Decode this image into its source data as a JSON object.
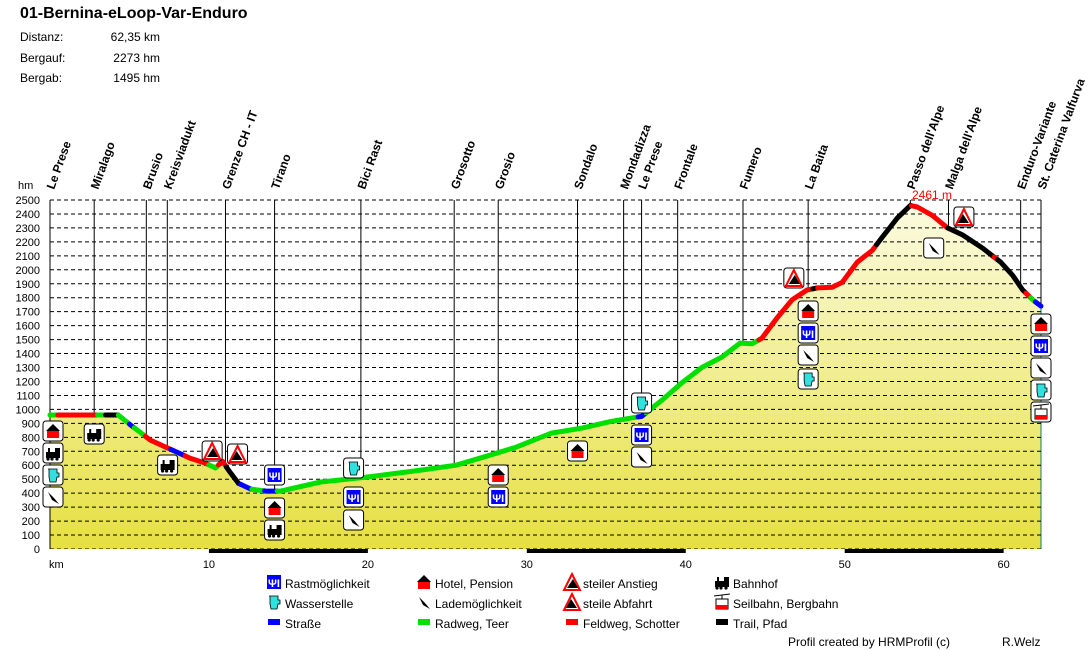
{
  "header": {
    "title": "01-Bernina-eLoop-Var-Enduro",
    "stats": [
      {
        "label": "Distanz:",
        "value": "62,35 km"
      },
      {
        "label": "Bergauf:",
        "value": "2273 hm"
      },
      {
        "label": "Bergab:",
        "value": "1495 hm"
      }
    ]
  },
  "chart_data": {
    "type": "area",
    "title": "01-Bernina-eLoop-Var-Enduro",
    "xlabel": "km",
    "ylabel": "hm",
    "xlim": [
      0,
      62.35
    ],
    "ylim": [
      0,
      2500
    ],
    "xticks": [
      10,
      20,
      30,
      40,
      50,
      60
    ],
    "yticks": [
      0,
      100,
      200,
      300,
      400,
      500,
      600,
      700,
      800,
      900,
      1000,
      1100,
      1200,
      1300,
      1400,
      1500,
      1600,
      1700,
      1800,
      1900,
      2000,
      2100,
      2200,
      2300,
      2400,
      2500
    ],
    "grid": true,
    "profile": [
      [
        0,
        960
      ],
      [
        2.52,
        960
      ],
      [
        4.29,
        960
      ],
      [
        5.05,
        890
      ],
      [
        6.31,
        780
      ],
      [
        7.57,
        715
      ],
      [
        8.83,
        650
      ],
      [
        9.78,
        615
      ],
      [
        10.41,
        580
      ],
      [
        10.85,
        630
      ],
      [
        11.23,
        565
      ],
      [
        11.86,
        470
      ],
      [
        12.62,
        430
      ],
      [
        13.56,
        415
      ],
      [
        14.51,
        415
      ],
      [
        17.03,
        480
      ],
      [
        19.56,
        510
      ],
      [
        23.34,
        565
      ],
      [
        25.55,
        600
      ],
      [
        27.76,
        675
      ],
      [
        29.34,
        730
      ],
      [
        31.55,
        830
      ],
      [
        33.44,
        865
      ],
      [
        35.33,
        915
      ],
      [
        37.22,
        950
      ],
      [
        38.49,
        1065
      ],
      [
        39.75,
        1190
      ],
      [
        41.01,
        1300
      ],
      [
        42.27,
        1375
      ],
      [
        43.41,
        1475
      ],
      [
        44.16,
        1470
      ],
      [
        44.79,
        1510
      ],
      [
        45.74,
        1655
      ],
      [
        46.69,
        1785
      ],
      [
        47.63,
        1855
      ],
      [
        48.26,
        1870
      ],
      [
        49.21,
        1875
      ],
      [
        49.84,
        1910
      ],
      [
        50.79,
        2055
      ],
      [
        51.74,
        2140
      ],
      [
        52.37,
        2235
      ],
      [
        53.31,
        2370
      ],
      [
        54.13,
        2461
      ],
      [
        54.57,
        2450
      ],
      [
        55.52,
        2390
      ],
      [
        56.47,
        2300
      ],
      [
        57.41,
        2250
      ],
      [
        58.68,
        2155
      ],
      [
        59.81,
        2055
      ],
      [
        60.57,
        1960
      ],
      [
        61.2,
        1855
      ],
      [
        61.83,
        1785
      ],
      [
        62.35,
        1740
      ]
    ],
    "surfaces": [
      {
        "from": 0,
        "to": 0.5,
        "type": "radweg"
      },
      {
        "from": 0.5,
        "to": 3,
        "type": "feldweg"
      },
      {
        "from": 3,
        "to": 3.5,
        "type": "radweg"
      },
      {
        "from": 3.5,
        "to": 4.3,
        "type": "trail"
      },
      {
        "from": 4.3,
        "to": 5,
        "type": "radweg"
      },
      {
        "from": 5,
        "to": 5.3,
        "type": "strasse"
      },
      {
        "from": 5.3,
        "to": 6,
        "type": "radweg"
      },
      {
        "from": 6,
        "to": 7.6,
        "type": "feldweg"
      },
      {
        "from": 7.6,
        "to": 8.5,
        "type": "strasse"
      },
      {
        "from": 8.5,
        "to": 10,
        "type": "feldweg"
      },
      {
        "from": 10,
        "to": 10.6,
        "type": "radweg"
      },
      {
        "from": 10.6,
        "to": 11.1,
        "type": "feldweg"
      },
      {
        "from": 11.1,
        "to": 12,
        "type": "trail"
      },
      {
        "from": 12,
        "to": 12.7,
        "type": "strasse"
      },
      {
        "from": 12.7,
        "to": 13.5,
        "type": "radweg"
      },
      {
        "from": 13.5,
        "to": 14.3,
        "type": "strasse"
      },
      {
        "from": 14.3,
        "to": 37,
        "type": "radweg"
      },
      {
        "from": 37,
        "to": 37.5,
        "type": "strasse"
      },
      {
        "from": 37.5,
        "to": 44.6,
        "type": "radweg"
      },
      {
        "from": 44.6,
        "to": 48,
        "type": "feldweg"
      },
      {
        "from": 48,
        "to": 48.3,
        "type": "trail"
      },
      {
        "from": 48.3,
        "to": 52,
        "type": "feldweg"
      },
      {
        "from": 52,
        "to": 54.2,
        "type": "trail"
      },
      {
        "from": 54.2,
        "to": 56.5,
        "type": "feldweg"
      },
      {
        "from": 56.5,
        "to": 59.4,
        "type": "trail"
      },
      {
        "from": 59.4,
        "to": 59.6,
        "type": "feldweg"
      },
      {
        "from": 59.6,
        "to": 61.4,
        "type": "trail"
      },
      {
        "from": 61.4,
        "to": 61.7,
        "type": "feldweg"
      },
      {
        "from": 61.7,
        "to": 62,
        "type": "radweg"
      },
      {
        "from": 62,
        "to": 62.35,
        "type": "strasse"
      }
    ],
    "waypoints": [
      {
        "km": 0,
        "name": "Le Prese"
      },
      {
        "km": 2.78,
        "name": "Miralago"
      },
      {
        "km": 6.06,
        "name": "Brusio"
      },
      {
        "km": 7.38,
        "name": "Kreisviadukt"
      },
      {
        "km": 11.04,
        "name": "Grenze CH - IT"
      },
      {
        "km": 14.13,
        "name": "Tirano"
      },
      {
        "km": 19.56,
        "name": "Bici Rast"
      },
      {
        "km": 25.43,
        "name": "Grosotto"
      },
      {
        "km": 28.2,
        "name": "Grosio"
      },
      {
        "km": 33.19,
        "name": "Sondalo"
      },
      {
        "km": 36.09,
        "name": "Mondadizza"
      },
      {
        "km": 37.22,
        "name": "Le Prese"
      },
      {
        "km": 39.49,
        "name": "Frontale"
      },
      {
        "km": 43.6,
        "name": "Fumero"
      },
      {
        "km": 47.7,
        "name": "La Baita"
      },
      {
        "km": 54.13,
        "name": "Passo dell'Alpe"
      },
      {
        "km": 56.53,
        "name": "Malga dell'Alpe"
      },
      {
        "km": 61.07,
        "name": "Enduro-Variante"
      },
      {
        "km": 62.35,
        "name": "St. Caterina Valfurva"
      }
    ],
    "max_label": "2461 m",
    "pois": [
      {
        "km": 0,
        "icons": [
          "hotel",
          "bahnhof",
          "wasser",
          "lade"
        ]
      },
      {
        "km": 2.78,
        "icons": [
          "bahnhof"
        ]
      },
      {
        "km": 7.4,
        "icons": [
          "bahnhof"
        ]
      },
      {
        "km": 10.2,
        "icons": [
          "anstieg"
        ]
      },
      {
        "km": 11.8,
        "icons": [
          "abfahrt"
        ]
      },
      {
        "km": 14.13,
        "icons": [
          "rast",
          "hotel",
          "bahnhof"
        ]
      },
      {
        "km": 19.1,
        "icons": [
          "wasser",
          "rast",
          "lade"
        ]
      },
      {
        "km": 28.2,
        "icons": [
          "hotel",
          "rast"
        ]
      },
      {
        "km": 33.19,
        "icons": [
          "hotel"
        ]
      },
      {
        "km": 37.22,
        "icons": [
          "wasser",
          "rast",
          "lade"
        ]
      },
      {
        "km": 46.8,
        "icons": [
          "anstieg"
        ]
      },
      {
        "km": 47.7,
        "icons": [
          "hotel",
          "rast",
          "lade",
          "wasser"
        ]
      },
      {
        "km": 55.6,
        "icons": [
          "lade"
        ]
      },
      {
        "km": 57.5,
        "icons": [
          "abfahrt"
        ]
      },
      {
        "km": 62.35,
        "icons": [
          "hotel",
          "rast",
          "lade",
          "wasser",
          "seilbahn"
        ]
      }
    ]
  },
  "colors": {
    "strasse": "#0000ff",
    "radweg": "#00e000",
    "feldweg": "#ff0000",
    "trail": "#000000",
    "peak": "#ff0000"
  },
  "legend": [
    {
      "icon": "rast",
      "label": "Rastmöglichkeit"
    },
    {
      "icon": "hotel",
      "label": "Hotel, Pension"
    },
    {
      "icon": "anstieg",
      "label": "steiler Anstieg"
    },
    {
      "icon": "bahnhof",
      "label": "Bahnhof"
    },
    {
      "icon": "wasser",
      "label": "Wasserstelle"
    },
    {
      "icon": "lade",
      "label": "Lademöglichkeit"
    },
    {
      "icon": "abfahrt",
      "label": "steile Abfahrt"
    },
    {
      "icon": "seilbahn",
      "label": "Seilbahn, Bergbahn"
    },
    {
      "icon": "strasse",
      "label": "Straße"
    },
    {
      "icon": "radweg",
      "label": "Radweg, Teer"
    },
    {
      "icon": "feldweg",
      "label": "Feldweg, Schotter"
    },
    {
      "icon": "trail",
      "label": "Trail, Pfad"
    }
  ],
  "footer": {
    "credit": "Profil created by HRMProfil (c)",
    "author": "R.Welz"
  }
}
